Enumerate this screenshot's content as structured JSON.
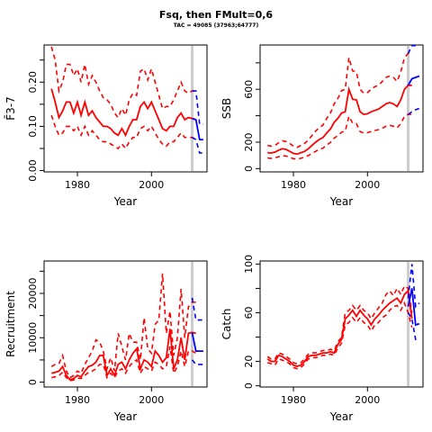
{
  "figure": {
    "title": "Fsq, then FMult=0,6",
    "subtitle": "TAC = 49085 (37963;64777)"
  },
  "colors": {
    "historic": "#ff0000",
    "projection": "#0000ff",
    "current_year_line": "#cccccc"
  },
  "chart_data": [
    {
      "id": "fbar",
      "type": "line",
      "xlabel": "Year",
      "ylabel": "F̄3-7",
      "xlim": [
        1971,
        2015
      ],
      "ylim": [
        -0.003,
        0.284
      ],
      "xticks": [
        1980,
        2000
      ],
      "xtick_labels": [
        "1980",
        "2000"
      ],
      "yticks": [
        0.0,
        0.1,
        0.2
      ],
      "ytick_labels": [
        "0.00",
        "0.10",
        "0.20"
      ],
      "minor_yticks": [
        0.05,
        0.15,
        0.25
      ],
      "vline_x": 2011,
      "historic": {
        "x": [
          1973,
          1974,
          1975,
          1976,
          1977,
          1978,
          1979,
          1980,
          1981,
          1982,
          1983,
          1984,
          1985,
          1986,
          1987,
          1988,
          1989,
          1990,
          1991,
          1992,
          1993,
          1994,
          1995,
          1996,
          1997,
          1998,
          1999,
          2000,
          2001,
          2002,
          2003,
          2004,
          2005,
          2006,
          2007,
          2008,
          2009,
          2010,
          2011,
          2012
        ],
        "median": [
          0.185,
          0.155,
          0.12,
          0.135,
          0.155,
          0.155,
          0.13,
          0.155,
          0.125,
          0.155,
          0.125,
          0.135,
          0.12,
          0.11,
          0.1,
          0.1,
          0.095,
          0.085,
          0.08,
          0.095,
          0.08,
          0.1,
          0.115,
          0.115,
          0.145,
          0.155,
          0.14,
          0.155,
          0.135,
          0.115,
          0.095,
          0.09,
          0.1,
          0.1,
          0.12,
          0.13,
          0.115,
          0.12,
          0.118,
          0.115
        ],
        "upper": [
          0.28,
          0.25,
          0.18,
          0.2,
          0.24,
          0.24,
          0.215,
          0.23,
          0.2,
          0.24,
          0.195,
          0.215,
          0.2,
          0.18,
          0.165,
          0.16,
          0.15,
          0.13,
          0.12,
          0.14,
          0.125,
          0.16,
          0.175,
          0.17,
          0.225,
          0.23,
          0.205,
          0.23,
          0.2,
          0.17,
          0.14,
          0.145,
          0.145,
          0.16,
          0.18,
          0.2,
          0.18,
          0.175,
          0.18,
          0.18
        ],
        "lower": [
          0.125,
          0.1,
          0.08,
          0.085,
          0.1,
          0.1,
          0.09,
          0.1,
          0.08,
          0.1,
          0.08,
          0.09,
          0.08,
          0.07,
          0.065,
          0.065,
          0.06,
          0.055,
          0.05,
          0.06,
          0.05,
          0.065,
          0.075,
          0.075,
          0.095,
          0.1,
          0.09,
          0.1,
          0.085,
          0.07,
          0.06,
          0.055,
          0.065,
          0.065,
          0.075,
          0.085,
          0.075,
          0.075,
          0.075,
          0.07
        ]
      },
      "projection": {
        "x": [
          2011,
          2012,
          2013,
          2014
        ],
        "median": [
          0.118,
          0.115,
          0.07,
          0.07
        ],
        "upper": [
          0.18,
          0.18,
          0.105,
          0.105
        ],
        "lower": [
          0.075,
          0.07,
          0.04,
          0.04
        ]
      }
    },
    {
      "id": "ssb",
      "type": "line",
      "xlabel": "Year",
      "ylabel": "SSB",
      "xlim": [
        1971,
        2015
      ],
      "ylim": [
        -25,
        935
      ],
      "xticks": [
        1980,
        2000
      ],
      "xtick_labels": [
        "1980",
        "2000"
      ],
      "yticks": [
        0,
        200,
        600
      ],
      "ytick_labels": [
        "0",
        "200",
        "600"
      ],
      "minor_yticks": [
        400,
        800
      ],
      "vline_x": 2011,
      "historic": {
        "x": [
          1973,
          1974,
          1975,
          1976,
          1977,
          1978,
          1979,
          1980,
          1981,
          1982,
          1983,
          1984,
          1985,
          1986,
          1987,
          1988,
          1989,
          1990,
          1991,
          1992,
          1993,
          1994,
          1995,
          1996,
          1997,
          1998,
          1999,
          2000,
          2001,
          2002,
          2003,
          2004,
          2005,
          2006,
          2007,
          2008,
          2009,
          2010,
          2011,
          2012
        ],
        "median": [
          120,
          118,
          125,
          140,
          150,
          145,
          130,
          115,
          110,
          120,
          130,
          150,
          175,
          200,
          220,
          235,
          270,
          300,
          350,
          380,
          420,
          430,
          600,
          525,
          520,
          430,
          410,
          415,
          430,
          440,
          450,
          470,
          490,
          500,
          490,
          470,
          520,
          600,
          630,
          630
        ],
        "upper": [
          175,
          170,
          175,
          195,
          210,
          205,
          190,
          170,
          160,
          175,
          190,
          215,
          250,
          285,
          310,
          330,
          380,
          420,
          490,
          530,
          590,
          600,
          840,
          740,
          730,
          600,
          570,
          575,
          600,
          620,
          630,
          660,
          690,
          700,
          690,
          660,
          730,
          840,
          870,
          870
        ],
        "lower": [
          80,
          78,
          82,
          90,
          98,
          95,
          85,
          75,
          72,
          78,
          85,
          98,
          115,
          130,
          145,
          155,
          178,
          198,
          230,
          250,
          275,
          285,
          395,
          345,
          340,
          280,
          268,
          272,
          280,
          288,
          295,
          305,
          320,
          328,
          320,
          308,
          340,
          395,
          410,
          410
        ]
      },
      "projection": {
        "x": [
          2011,
          2012,
          2013,
          2014
        ],
        "median": [
          630,
          680,
          690,
          700
        ],
        "upper": [
          870,
          930,
          930,
          930
        ],
        "lower": [
          410,
          430,
          445,
          455
        ]
      }
    },
    {
      "id": "recruitment",
      "type": "line",
      "xlabel": "Year",
      "ylabel": "Recruitment",
      "xlim": [
        1971,
        2015
      ],
      "ylim": [
        -1100,
        27300
      ],
      "xticks": [
        1980,
        2000
      ],
      "xtick_labels": [
        "1980",
        "2000"
      ],
      "yticks": [
        0,
        10000,
        20000
      ],
      "ytick_labels": [
        "0",
        "10000",
        "20000"
      ],
      "minor_yticks": [
        5000,
        15000,
        25000
      ],
      "vline_x": 2011,
      "historic": {
        "x": [
          1973,
          1974,
          1975,
          1976,
          1977,
          1978,
          1979,
          1980,
          1981,
          1982,
          1983,
          1984,
          1985,
          1986,
          1987,
          1988,
          1989,
          1990,
          1991,
          1992,
          1993,
          1994,
          1995,
          1996,
          1997,
          1998,
          1999,
          2000,
          2001,
          2002,
          2003,
          2004,
          2005,
          2006,
          2007,
          2008,
          2009,
          2010,
          2011,
          2012
        ],
        "median": [
          2000,
          2200,
          2500,
          3500,
          1500,
          500,
          800,
          1500,
          1200,
          2500,
          3500,
          3800,
          4500,
          6000,
          6000,
          1500,
          3000,
          1500,
          4000,
          4500,
          3000,
          5000,
          6500,
          7500,
          3000,
          5000,
          4500,
          3500,
          7000,
          6000,
          4500,
          5500,
          12000,
          3000,
          5000,
          10000,
          5000,
          11000,
          11200,
          11000
        ],
        "upper": [
          3500,
          4000,
          4200,
          6000,
          2500,
          1000,
          1500,
          2500,
          2000,
          4000,
          5500,
          7000,
          9500,
          9000,
          7000,
          3000,
          5500,
          2500,
          11000,
          8000,
          5000,
          11000,
          9000,
          9000,
          5000,
          14500,
          7500,
          6500,
          13000,
          14000,
          24500,
          11000,
          16000,
          6000,
          10000,
          21000,
          10000,
          17000,
          18000,
          18000
        ],
        "lower": [
          1000,
          1200,
          1500,
          2200,
          1000,
          300,
          500,
          900,
          800,
          1500,
          2200,
          2500,
          3000,
          4000,
          4000,
          1000,
          2000,
          1000,
          2500,
          3000,
          2000,
          3500,
          4500,
          5000,
          2000,
          3500,
          3000,
          2500,
          4500,
          4000,
          3000,
          3500,
          8000,
          2000,
          3500,
          7000,
          3500,
          7000,
          7000,
          6500
        ]
      },
      "projection": {
        "x": [
          2011,
          2012,
          2013,
          2014
        ],
        "median": [
          11200,
          7000,
          7000,
          7000
        ],
        "upper": [
          19000,
          14000,
          14000,
          14000
        ],
        "lower": [
          5000,
          4000,
          4000,
          4000
        ]
      }
    },
    {
      "id": "catch",
      "type": "line",
      "xlabel": "Year",
      "ylabel": "Catch",
      "xlim": [
        1971,
        2015
      ],
      "ylim": [
        -1,
        102.5
      ],
      "xticks": [
        1980,
        2000
      ],
      "xtick_labels": [
        "1980",
        "2000"
      ],
      "yticks": [
        0,
        20,
        60,
        100
      ],
      "ytick_labels": [
        "0",
        "20",
        "60",
        "100"
      ],
      "minor_yticks": [
        40,
        80
      ],
      "vline_x": 2011,
      "historic": {
        "x": [
          1973,
          1974,
          1975,
          1976,
          1977,
          1978,
          1979,
          1980,
          1981,
          1982,
          1983,
          1984,
          1985,
          1986,
          1987,
          1988,
          1989,
          1990,
          1991,
          1992,
          1993,
          1994,
          1995,
          1996,
          1997,
          1998,
          1999,
          2000,
          2001,
          2002,
          2003,
          2004,
          2005,
          2006,
          2007,
          2008,
          2009,
          2010,
          2011,
          2012
        ],
        "median": [
          22,
          20,
          20,
          25,
          24,
          22,
          20,
          17,
          16,
          17,
          20,
          24,
          25,
          25,
          26,
          27,
          27,
          28,
          27,
          34,
          38,
          55,
          58,
          62,
          57,
          62,
          58,
          55,
          50,
          55,
          58,
          62,
          65,
          68,
          70,
          72,
          68,
          75,
          78,
          55
        ],
        "upper": [
          24,
          22,
          22,
          27,
          26,
          24,
          22,
          19,
          18,
          19,
          22,
          26,
          27,
          27,
          28,
          29,
          29,
          30,
          29,
          36,
          40,
          60,
          62,
          66,
          62,
          66,
          62,
          60,
          55,
          60,
          64,
          68,
          75,
          78,
          74,
          80,
          75,
          82,
          80,
          60
        ],
        "lower": [
          19,
          18,
          17,
          22,
          21,
          20,
          18,
          15,
          14,
          15,
          18,
          22,
          23,
          23,
          24,
          25,
          25,
          26,
          25,
          31,
          35,
          50,
          52,
          56,
          52,
          56,
          52,
          50,
          45,
          50,
          52,
          56,
          58,
          62,
          65,
          66,
          62,
          68,
          60,
          48
        ]
      },
      "projection": {
        "x": [
          2011,
          2012,
          2013,
          2014
        ],
        "median": [
          65,
          80,
          50,
          51
        ],
        "upper": [
          72,
          100,
          65,
          68
        ],
        "lower": [
          60,
          55,
          38,
          38
        ]
      }
    }
  ]
}
